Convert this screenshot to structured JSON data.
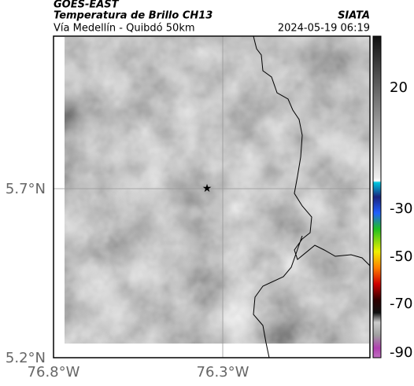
{
  "header": {
    "source": "GOES-EAST",
    "title": "Temperatura de Brillo CH13",
    "brand": "SIATA",
    "subtitle": "Vía Medellín - Quibdó 50km",
    "timestamp": "2024-05-19 06:19"
  },
  "map": {
    "lat_labels": [
      "5.7°N",
      "5.2°N"
    ],
    "lon_labels": [
      "76.8°W",
      "76.3°W"
    ]
  },
  "colorbar": {
    "labels": [
      "20",
      "-30",
      "-50",
      "-70",
      "-90"
    ]
  }
}
